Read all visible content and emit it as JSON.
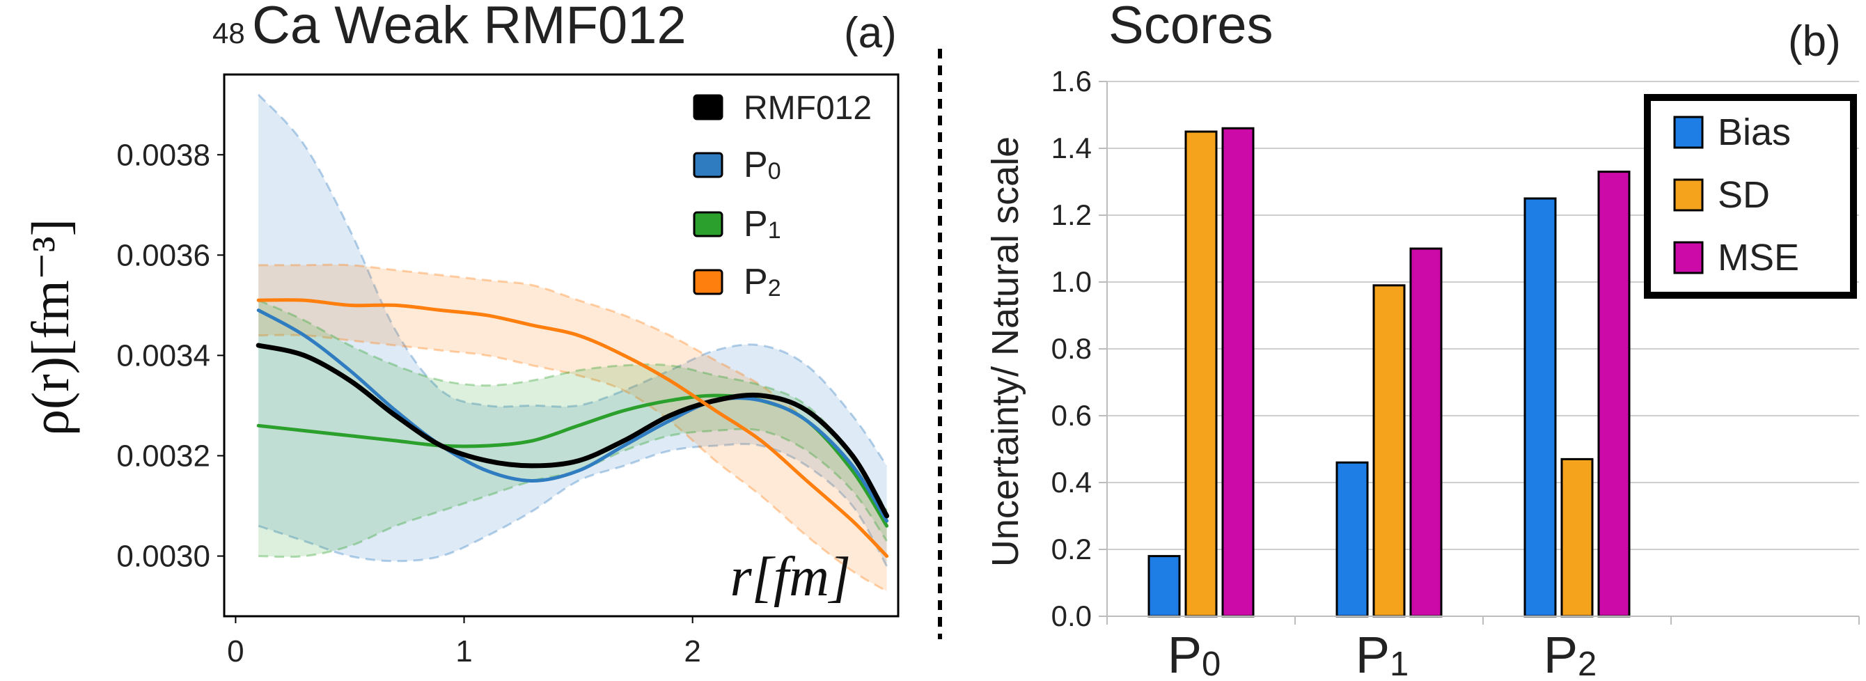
{
  "chart_data": [
    {
      "type": "line",
      "panel": "(a)",
      "title": {
        "sup": "48",
        "main": "Ca Weak RMF012"
      },
      "xlabel": "r[fm]",
      "ylabel": "ρ(r)[fm⁻³]",
      "xlim": [
        -0.05,
        2.9
      ],
      "ylim": [
        0.00288,
        0.00396
      ],
      "xticks": [
        0,
        1,
        2
      ],
      "yticks": [
        0.003,
        0.0032,
        0.0034,
        0.0036,
        0.0038
      ],
      "ytick_labels": [
        "0.0030",
        "0.0032",
        "0.0034",
        "0.0036",
        "0.0038"
      ],
      "x": [
        0.1,
        0.3,
        0.5,
        0.7,
        0.9,
        1.1,
        1.3,
        1.5,
        1.7,
        1.9,
        2.1,
        2.3,
        2.5,
        2.7,
        2.85
      ],
      "series": [
        {
          "name": "RMF012",
          "sub": "",
          "color": "#000000",
          "width": 7,
          "values": [
            0.00342,
            0.0034,
            0.00335,
            0.00328,
            0.00322,
            0.00319,
            0.00318,
            0.00319,
            0.00323,
            0.00328,
            0.00331,
            0.00332,
            0.00329,
            0.0032,
            0.00308
          ]
        },
        {
          "name": "P",
          "sub": "0",
          "color": "#2f7cc0",
          "width": 5,
          "values": [
            0.00349,
            0.00344,
            0.00337,
            0.00329,
            0.00322,
            0.00317,
            0.00315,
            0.00317,
            0.00322,
            0.00327,
            0.00331,
            0.00331,
            0.00327,
            0.00318,
            0.00307
          ],
          "band_upper": [
            0.00392,
            0.00382,
            0.00365,
            0.00345,
            0.00333,
            0.0033,
            0.0033,
            0.0033,
            0.00333,
            0.00337,
            0.00341,
            0.00342,
            0.00338,
            0.00328,
            0.00318
          ],
          "band_lower": [
            0.00306,
            0.00303,
            0.003,
            0.00299,
            0.003,
            0.00304,
            0.00309,
            0.00315,
            0.00318,
            0.00321,
            0.00322,
            0.00322,
            0.00318,
            0.0031,
            0.00298
          ]
        },
        {
          "name": "P",
          "sub": "1",
          "color": "#2ca02c",
          "width": 5,
          "values": [
            0.00326,
            0.00325,
            0.00324,
            0.00323,
            0.00322,
            0.00322,
            0.00323,
            0.00326,
            0.00329,
            0.00331,
            0.00332,
            0.00331,
            0.00327,
            0.00317,
            0.00306
          ],
          "band_upper": [
            0.00351,
            0.00347,
            0.00342,
            0.00338,
            0.00335,
            0.00334,
            0.00335,
            0.00337,
            0.00338,
            0.00338,
            0.00336,
            0.00334,
            0.0033,
            0.0032,
            0.00309
          ],
          "band_lower": [
            0.003,
            0.003,
            0.00302,
            0.00306,
            0.00309,
            0.00312,
            0.00315,
            0.00317,
            0.00321,
            0.00324,
            0.00325,
            0.00325,
            0.00321,
            0.00313,
            0.00303
          ]
        },
        {
          "name": "P",
          "sub": "2",
          "color": "#ff7f0e",
          "width": 5,
          "values": [
            0.00351,
            0.00351,
            0.0035,
            0.0035,
            0.00349,
            0.00348,
            0.00346,
            0.00344,
            0.0034,
            0.00335,
            0.00329,
            0.00323,
            0.00315,
            0.00307,
            0.003
          ],
          "band_upper": [
            0.00358,
            0.00358,
            0.00358,
            0.00357,
            0.00356,
            0.00355,
            0.00354,
            0.00351,
            0.00348,
            0.00344,
            0.00339,
            0.00334,
            0.00327,
            0.00318,
            0.00309
          ],
          "band_lower": [
            0.00344,
            0.00344,
            0.00343,
            0.00342,
            0.00341,
            0.0034,
            0.00338,
            0.00336,
            0.00333,
            0.00327,
            0.00319,
            0.00312,
            0.00304,
            0.00297,
            0.00293
          ]
        }
      ]
    },
    {
      "type": "bar",
      "panel": "(b)",
      "title": "Scores",
      "xlabel": "",
      "ylabel": "Uncertainty/ Natural scale",
      "ylim": [
        0,
        1.6
      ],
      "yticks": [
        0.0,
        0.2,
        0.4,
        0.6,
        0.8,
        1.0,
        1.2,
        1.4,
        1.6
      ],
      "ytick_labels": [
        "0.0",
        "0.2",
        "0.4",
        "0.6",
        "0.8",
        "1.0",
        "1.2",
        "1.4",
        "1.6"
      ],
      "grid": true,
      "legend_position": "top-right",
      "categories": [
        {
          "name": "P",
          "sub": "0"
        },
        {
          "name": "P",
          "sub": "1"
        },
        {
          "name": "P",
          "sub": "2"
        }
      ],
      "series": [
        {
          "name": "Bias",
          "color": "#1f7ee6",
          "values": [
            0.18,
            0.46,
            1.25
          ]
        },
        {
          "name": "SD",
          "color": "#f5a21c",
          "values": [
            1.45,
            0.99,
            0.47
          ]
        },
        {
          "name": "MSE",
          "color": "#cc0aa8",
          "values": [
            1.46,
            1.1,
            1.33
          ]
        }
      ]
    }
  ]
}
